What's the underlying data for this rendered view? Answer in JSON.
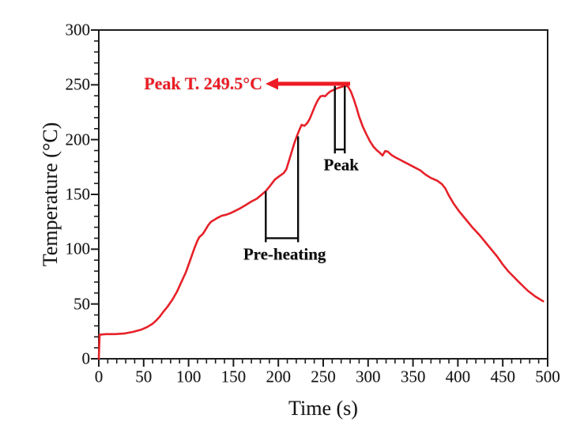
{
  "chart_data": {
    "type": "line",
    "title": "",
    "xlabel": "Time (s)",
    "ylabel": "Temperature (°C)",
    "xlim": [
      0,
      500
    ],
    "ylim": [
      0,
      300
    ],
    "x_major_ticks": [
      0,
      50,
      100,
      150,
      200,
      250,
      300,
      350,
      400,
      450,
      500
    ],
    "x_minor_step": 10,
    "y_major_ticks": [
      0,
      50,
      100,
      150,
      200,
      250,
      300
    ],
    "y_minor_step": 10,
    "grid": false,
    "legend": "none",
    "axis_color": "#1c1c1c",
    "series": [
      {
        "name": "temperature-profile",
        "color": "#e62129",
        "points": [
          [
            0,
            0
          ],
          [
            1,
            22
          ],
          [
            8,
            22.5
          ],
          [
            18,
            22.5
          ],
          [
            28,
            23
          ],
          [
            38,
            24.5
          ],
          [
            47,
            26.5
          ],
          [
            54,
            29
          ],
          [
            60,
            32
          ],
          [
            64,
            35
          ],
          [
            68,
            38.5
          ],
          [
            72,
            43
          ],
          [
            77,
            48
          ],
          [
            82,
            54
          ],
          [
            87,
            61
          ],
          [
            92,
            70
          ],
          [
            97,
            79
          ],
          [
            101,
            88
          ],
          [
            104,
            95
          ],
          [
            107,
            102
          ],
          [
            110,
            108
          ],
          [
            112,
            111
          ],
          [
            114,
            112.5
          ],
          [
            116,
            114
          ],
          [
            119,
            118
          ],
          [
            122,
            122
          ],
          [
            125,
            125
          ],
          [
            128,
            126.5
          ],
          [
            132,
            128.5
          ],
          [
            137,
            130.5
          ],
          [
            142,
            131.5
          ],
          [
            147,
            133
          ],
          [
            152,
            135
          ],
          [
            158,
            137.5
          ],
          [
            164,
            140.5
          ],
          [
            170,
            143.5
          ],
          [
            176,
            146
          ],
          [
            181,
            149.5
          ],
          [
            186,
            153
          ],
          [
            191,
            158
          ],
          [
            196,
            163.5
          ],
          [
            201,
            166.5
          ],
          [
            206,
            169.5
          ],
          [
            209,
            173
          ],
          [
            212,
            181
          ],
          [
            215,
            189
          ],
          [
            218,
            197
          ],
          [
            221,
            204
          ],
          [
            224,
            210
          ],
          [
            226,
            213.5
          ],
          [
            229,
            212.5
          ],
          [
            232,
            215
          ],
          [
            235,
            219
          ],
          [
            238,
            225
          ],
          [
            241,
            231
          ],
          [
            244,
            236
          ],
          [
            247,
            239.5
          ],
          [
            250,
            240
          ],
          [
            252,
            239.5
          ],
          [
            255,
            242
          ],
          [
            258,
            244
          ],
          [
            262,
            245.5
          ],
          [
            266,
            247
          ],
          [
            270,
            248
          ],
          [
            275,
            249.5
          ],
          [
            278,
            248
          ],
          [
            281,
            243.5
          ],
          [
            284,
            237
          ],
          [
            287,
            229.5
          ],
          [
            290,
            221
          ],
          [
            294,
            212
          ],
          [
            298,
            205
          ],
          [
            302,
            198.5
          ],
          [
            306,
            193.5
          ],
          [
            310,
            190
          ],
          [
            313,
            188
          ],
          [
            316,
            185.5
          ],
          [
            319,
            189.5
          ],
          [
            322,
            189
          ],
          [
            326,
            186
          ],
          [
            331,
            183.5
          ],
          [
            337,
            181
          ],
          [
            344,
            178
          ],
          [
            351,
            175
          ],
          [
            358,
            172
          ],
          [
            364,
            168
          ],
          [
            370,
            165
          ],
          [
            377,
            162.5
          ],
          [
            382,
            159.5
          ],
          [
            386,
            155.5
          ],
          [
            390,
            149
          ],
          [
            395,
            142
          ],
          [
            401,
            135
          ],
          [
            408,
            128
          ],
          [
            416,
            120
          ],
          [
            424,
            113
          ],
          [
            431,
            106
          ],
          [
            438,
            99
          ],
          [
            444,
            93
          ],
          [
            450,
            86
          ],
          [
            456,
            80
          ],
          [
            462,
            75
          ],
          [
            468,
            70
          ],
          [
            473,
            66
          ],
          [
            478,
            62
          ],
          [
            482,
            59.5
          ],
          [
            486,
            57
          ],
          [
            490,
            55
          ],
          [
            493,
            53.5
          ],
          [
            495,
            52.5
          ]
        ]
      }
    ],
    "annotations": {
      "peak_text": "Peak T. 249.5°C",
      "peak_text_color": "#ed1b24",
      "peak_value": 249.5,
      "arrow": {
        "T": 251,
        "t_tip": 187.5,
        "t_end": 280,
        "color": "#ed1b24"
      },
      "brackets": [
        {
          "label": "Peak",
          "t1": 263,
          "t2": 274,
          "top_T1": 249,
          "top_T2": 249,
          "base_T": 191,
          "label_t": 270,
          "label_T": 177
        },
        {
          "label": "Pre-heating",
          "t1": 186,
          "t2": 222,
          "top_T1": 153,
          "top_T2": 203,
          "base_T": 110,
          "label_t": 207,
          "label_T": 95
        }
      ]
    }
  }
}
